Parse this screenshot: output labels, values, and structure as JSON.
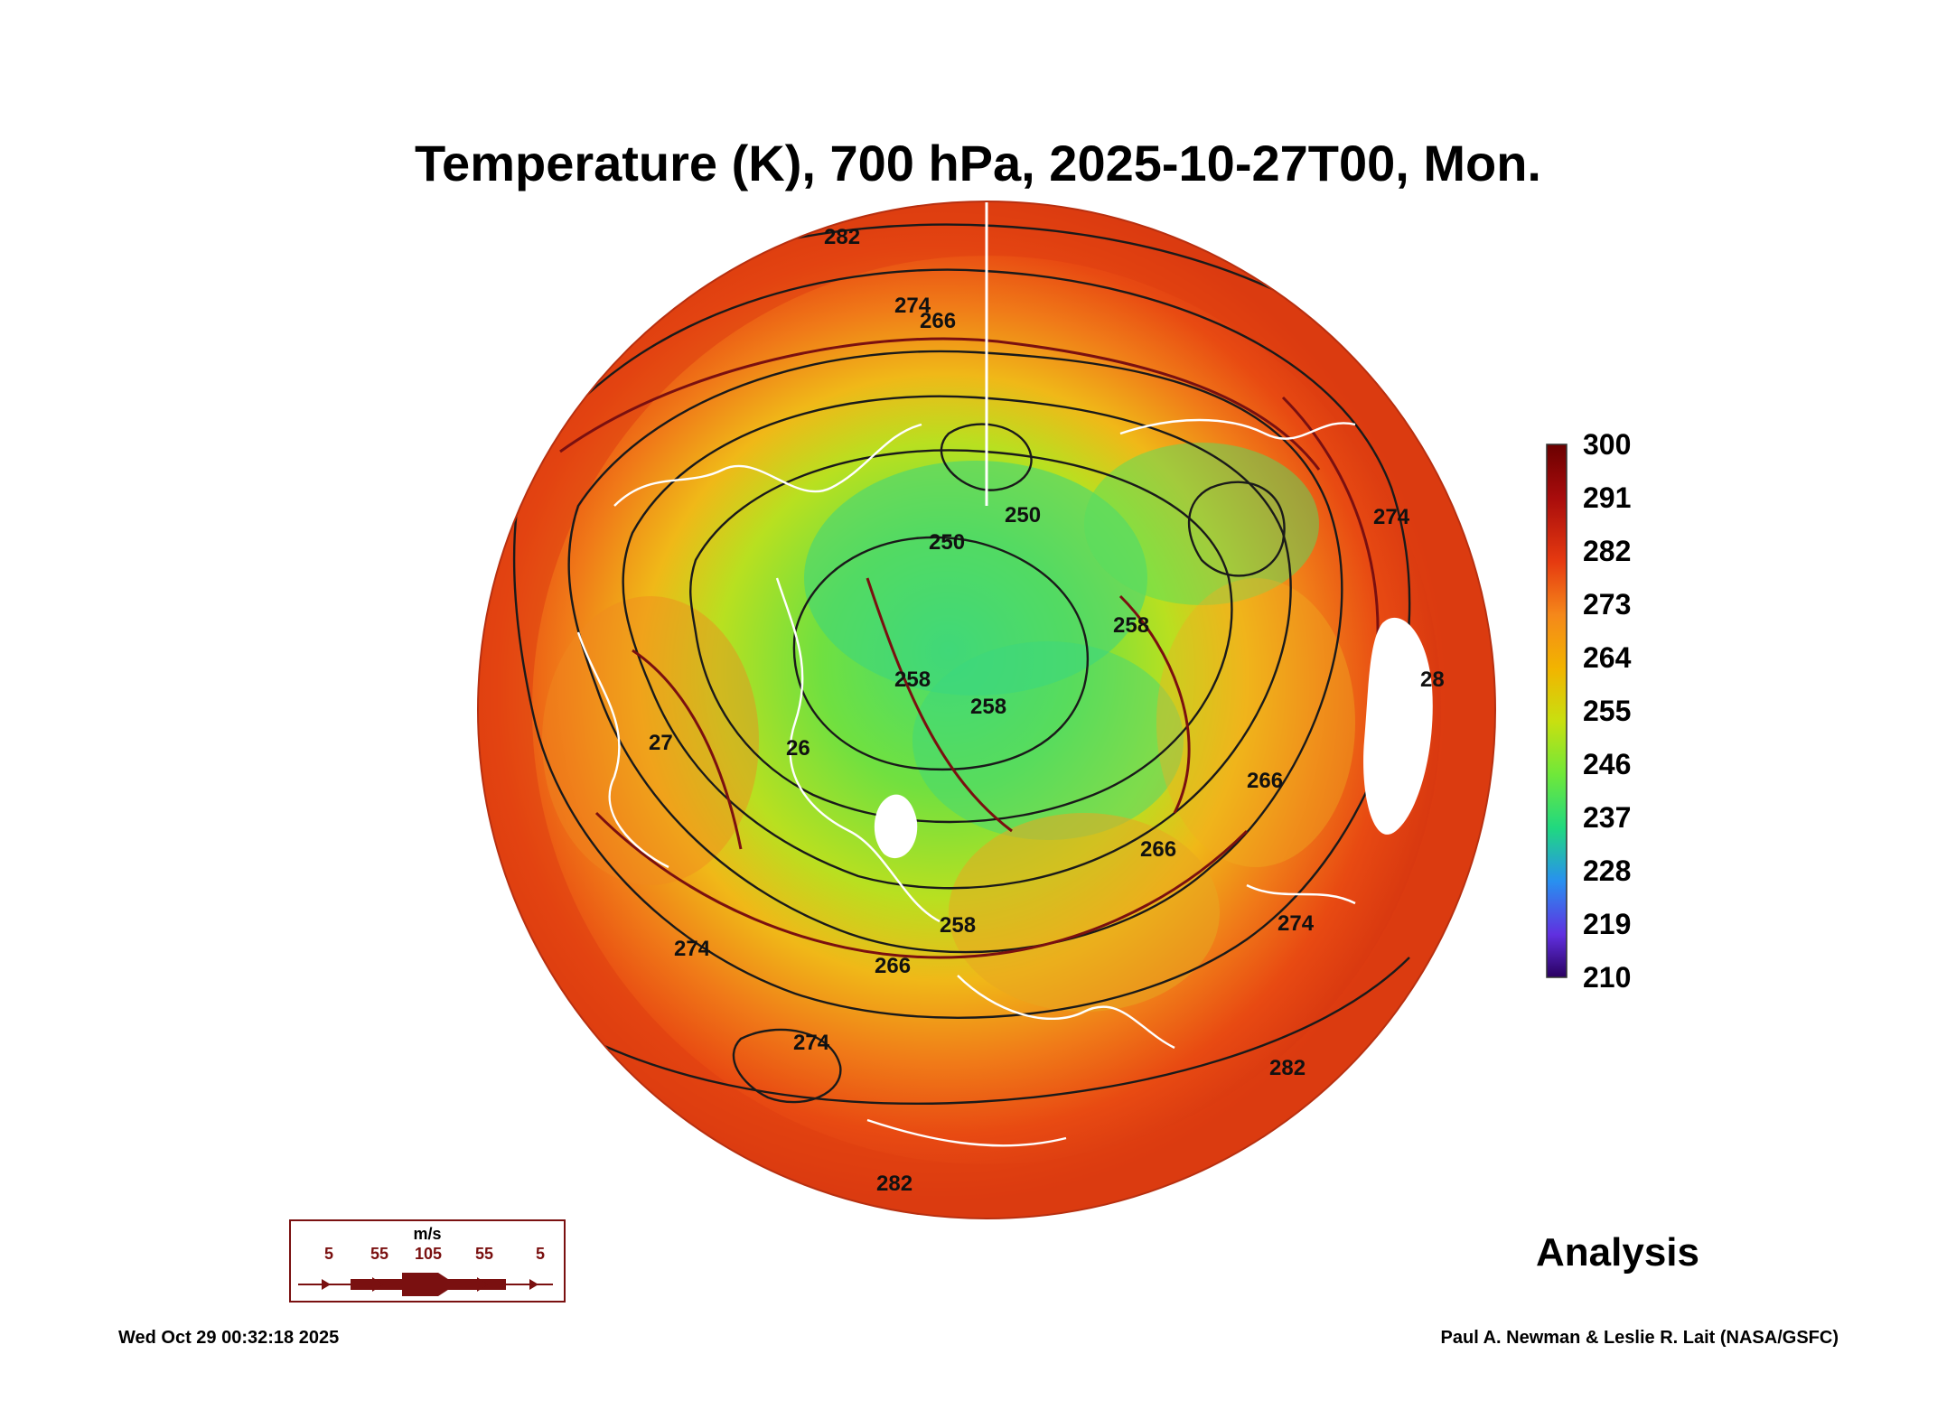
{
  "title": "Temperature (K), 700 hPa, 2025-10-27T00, Mon.",
  "colorbar": {
    "ticks": [
      "300",
      "291",
      "282",
      "273",
      "264",
      "255",
      "246",
      "237",
      "228",
      "219",
      "210"
    ],
    "colors": [
      "#6b0000",
      "#a80c0c",
      "#e63a10",
      "#f5881a",
      "#f2b400",
      "#c8e010",
      "#6fe83a",
      "#20d880",
      "#2890f0",
      "#6030e0",
      "#2a0060"
    ]
  },
  "contour_labels": [
    "282",
    "274",
    "266",
    "250",
    "250",
    "258",
    "258",
    "258",
    "266",
    "266",
    "258",
    "266",
    "274",
    "274",
    "274",
    "282",
    "282",
    "274",
    "28",
    "27",
    "26"
  ],
  "wind_legend": {
    "unit": "m/s",
    "values": [
      "5",
      "55",
      "105",
      "55",
      "5"
    ]
  },
  "analysis_label": "Analysis",
  "timestamp": "Wed Oct 29 00:32:18 2025",
  "credit": "Paul A. Newman & Leslie R. Lait (NASA/GSFC)",
  "colors": {
    "warm": "#e84a12",
    "mid": "#f0a020",
    "cool": "#70e040",
    "cold": "#38d878",
    "contour": "#1a1a1a",
    "streamline": "#7a1010",
    "coast": "#ffffff"
  }
}
